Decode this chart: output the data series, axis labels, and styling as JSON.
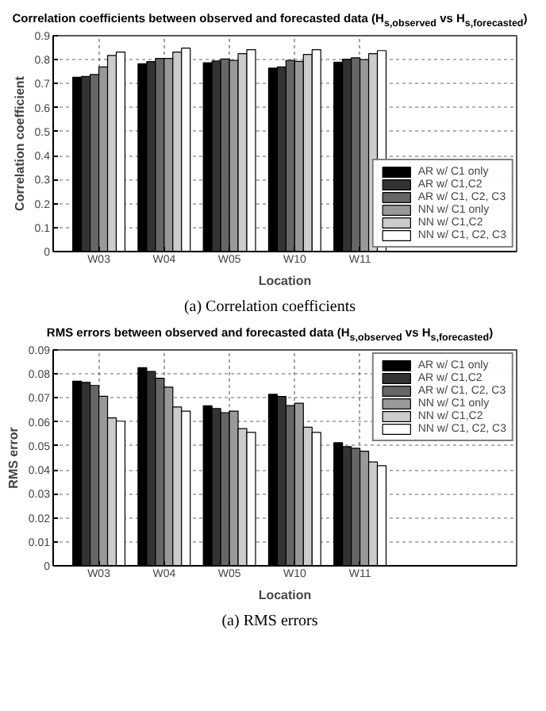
{
  "chart_data": [
    {
      "type": "bar",
      "title": "Correlation coefficients between observed and forecasted data (H$_{s,observed}$ vs H$_{s,forecasted}$)",
      "xlabel": "Location",
      "ylabel": "Correlation coefficient",
      "categories": [
        "W03",
        "W04",
        "W05",
        "W10",
        "W11"
      ],
      "ylim": [
        0,
        0.9
      ],
      "yticks": [
        0,
        0.1,
        0.2,
        0.3,
        0.4,
        0.5,
        0.6,
        0.7,
        0.8,
        0.9
      ],
      "grid": true,
      "legend": "bottom right",
      "annotations": [
        "(a) Correlation coefficients"
      ],
      "series": [
        {
          "name": "AR w/ C1 only",
          "color": "#000000",
          "values": [
            0.727,
            0.783,
            0.787,
            0.765,
            0.79
          ]
        },
        {
          "name": "AR w/ C1,C2",
          "color": "#333333",
          "values": [
            0.73,
            0.792,
            0.795,
            0.77,
            0.802
          ]
        },
        {
          "name": "AR w/ C1, C2, C3",
          "color": "#666666",
          "values": [
            0.738,
            0.805,
            0.803,
            0.797,
            0.808
          ]
        },
        {
          "name": "NN w/ C1 only",
          "color": "#999999",
          "values": [
            0.77,
            0.805,
            0.797,
            0.793,
            0.8
          ]
        },
        {
          "name": "NN w/ C1,C2",
          "color": "#cccccc",
          "values": [
            0.818,
            0.832,
            0.825,
            0.822,
            0.825
          ]
        },
        {
          "name": "NN w/ C1, C2, C3",
          "color": "#ffffff",
          "values": [
            0.832,
            0.848,
            0.842,
            0.842,
            0.838
          ]
        }
      ]
    },
    {
      "type": "bar",
      "title": "RMS errors between observed and forecasted data (H$_{s,observed}$ vs H$_{s,forecasted}$)",
      "xlabel": "Location",
      "ylabel": "RMS error",
      "categories": [
        "W03",
        "W04",
        "W05",
        "W10",
        "W11"
      ],
      "ylim": [
        0,
        0.09
      ],
      "yticks": [
        0,
        0.01,
        0.02,
        0.03,
        0.04,
        0.05,
        0.06,
        0.07,
        0.08,
        0.09
      ],
      "grid": true,
      "legend": "top right",
      "annotations": [
        "(a) RMS errors"
      ],
      "series": [
        {
          "name": "AR w/ C1 only",
          "color": "#000000",
          "values": [
            0.077,
            0.0826,
            0.0667,
            0.0715,
            0.0513
          ]
        },
        {
          "name": "AR w/ C1,C2",
          "color": "#333333",
          "values": [
            0.0765,
            0.081,
            0.0656,
            0.0706,
            0.0497
          ]
        },
        {
          "name": "AR w/ C1, C2, C3",
          "color": "#666666",
          "values": [
            0.0752,
            0.0782,
            0.0638,
            0.0668,
            0.049
          ]
        },
        {
          "name": "NN w/ C1 only",
          "color": "#999999",
          "values": [
            0.0707,
            0.0745,
            0.0645,
            0.0678,
            0.0478
          ]
        },
        {
          "name": "NN w/ C1,C2",
          "color": "#cccccc",
          "values": [
            0.0617,
            0.0662,
            0.0572,
            0.0578,
            0.0433
          ]
        },
        {
          "name": "NN w/ C1, C2, C3",
          "color": "#ffffff",
          "values": [
            0.0603,
            0.0645,
            0.0556,
            0.0556,
            0.0417
          ]
        }
      ]
    }
  ]
}
